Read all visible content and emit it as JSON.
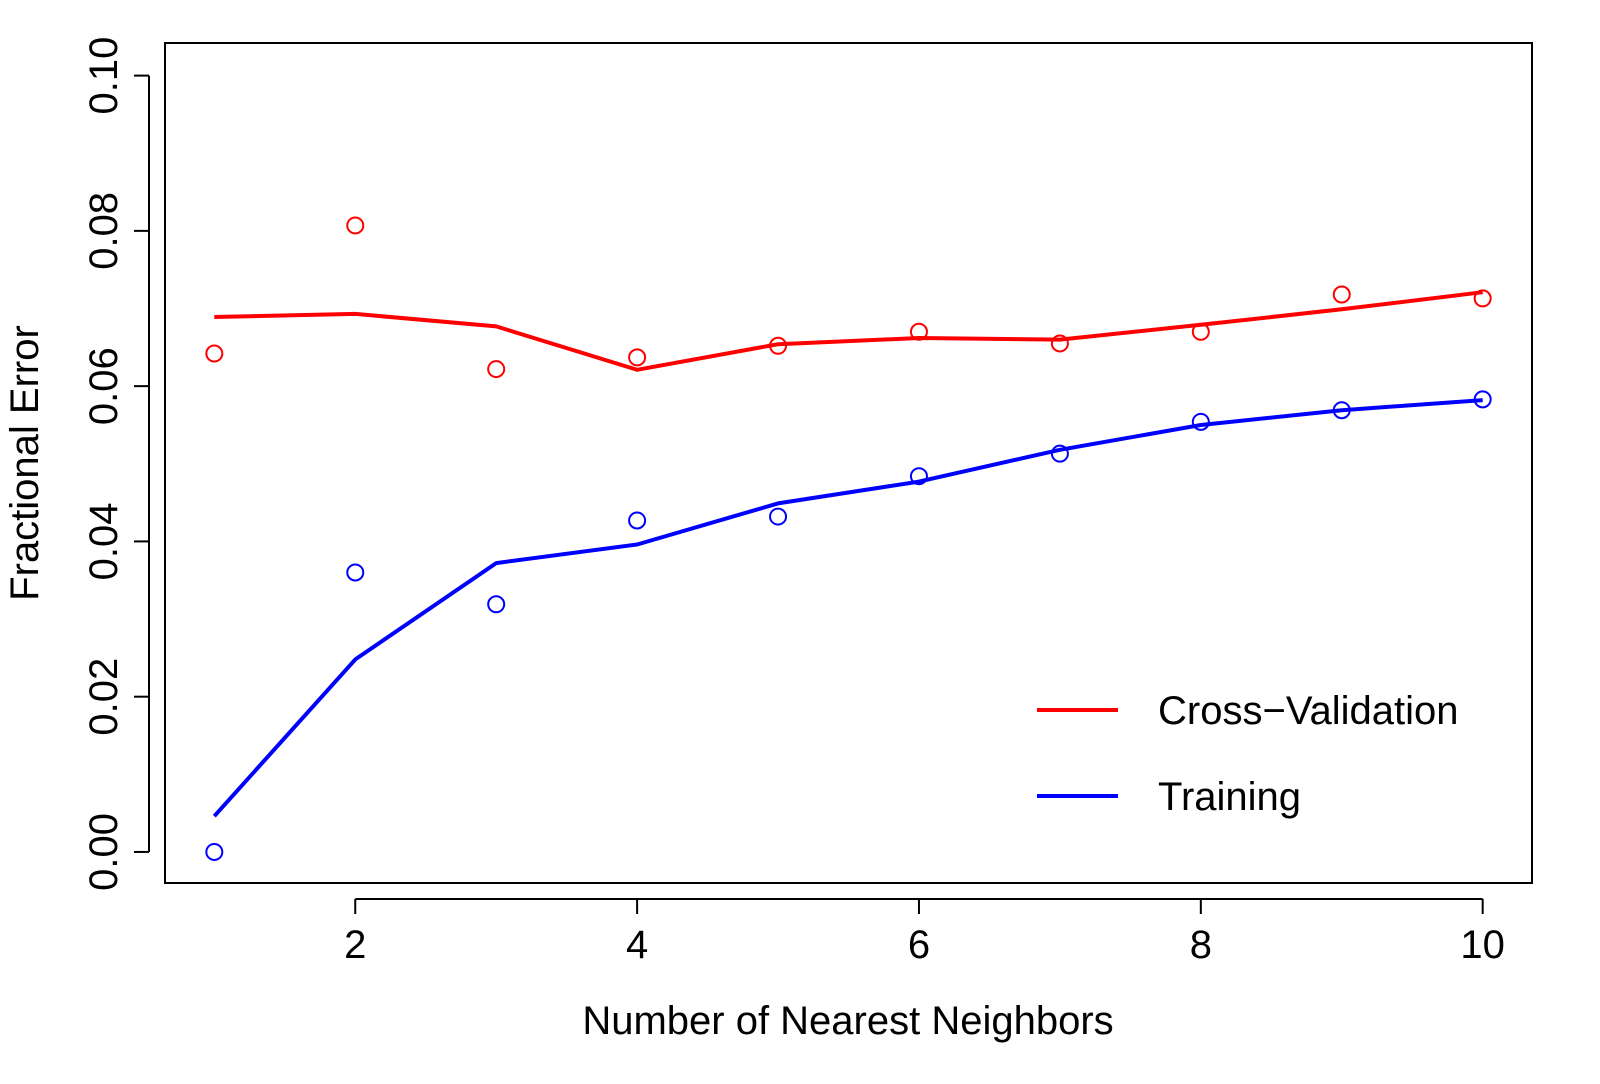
{
  "chart_data": {
    "type": "line",
    "title": "",
    "xlabel": "Number of Nearest Neighbors",
    "ylabel": "Fractional Error",
    "xlim": [
      0.65,
      10.35
    ],
    "ylim": [
      -0.004,
      0.1042
    ],
    "x_ticks": [
      2,
      4,
      6,
      8,
      10
    ],
    "x_tick_labels": [
      "2",
      "4",
      "6",
      "8",
      "10"
    ],
    "y_ticks": [
      0.0,
      0.02,
      0.04,
      0.06,
      0.08,
      0.1
    ],
    "y_tick_labels": [
      "0.00",
      "0.02",
      "0.04",
      "0.06",
      "0.08",
      "0.10"
    ],
    "grid": false,
    "legend_position": "bottom-right",
    "series": [
      {
        "name": "Cross−Validation",
        "color": "#ff0000",
        "x": [
          1,
          2,
          3,
          4,
          5,
          6,
          7,
          8,
          9,
          10
        ],
        "points": [
          0.0642,
          0.0807,
          0.0622,
          0.0637,
          0.0652,
          0.067,
          0.0655,
          0.067,
          0.0718,
          0.0713
        ],
        "line": [
          0.0689,
          0.0693,
          0.0677,
          0.0621,
          0.0654,
          0.0662,
          0.066,
          0.0679,
          0.0699,
          0.0721
        ]
      },
      {
        "name": "Training",
        "color": "#0000ff",
        "x": [
          1,
          2,
          3,
          4,
          5,
          6,
          7,
          8,
          9,
          10
        ],
        "points": [
          0.0,
          0.036,
          0.0319,
          0.0427,
          0.0432,
          0.0484,
          0.0513,
          0.0554,
          0.0569,
          0.0583
        ],
        "line": [
          0.0046,
          0.0248,
          0.0372,
          0.0396,
          0.0449,
          0.0477,
          0.0518,
          0.055,
          0.0569,
          0.0582
        ]
      }
    ]
  }
}
